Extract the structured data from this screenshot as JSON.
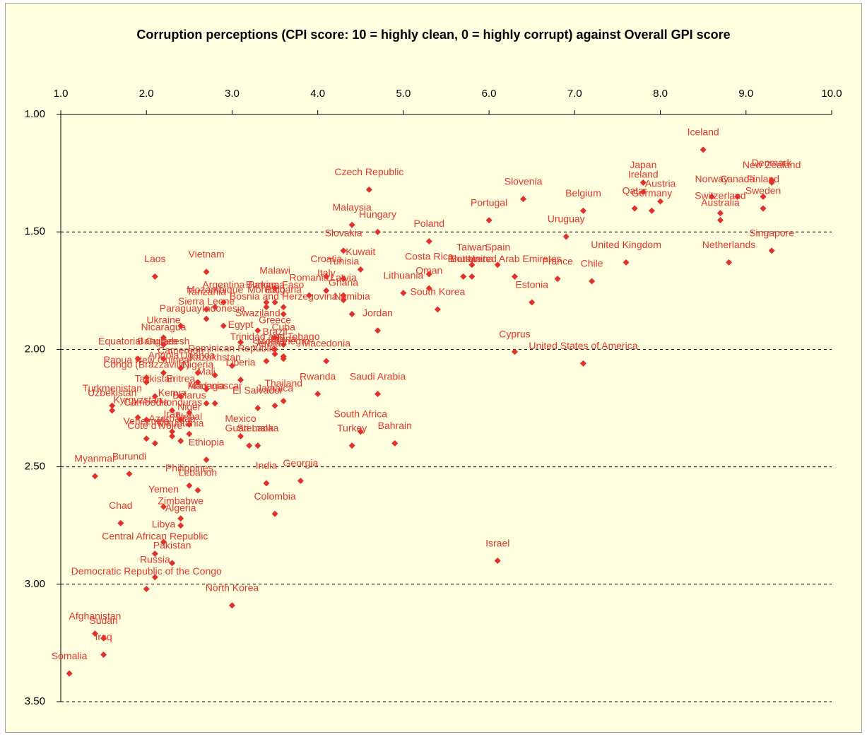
{
  "chart_data": {
    "type": "scatter",
    "title": "Corruption perceptions (CPI score: 10 = highly clean, 0 = highly corrupt) against Overall GPI score",
    "xlim": [
      1,
      10
    ],
    "xticks": [
      {
        "value": 1,
        "label": "1.0"
      },
      {
        "value": 2,
        "label": "2.0"
      },
      {
        "value": 3,
        "label": "3.0"
      },
      {
        "value": 4,
        "label": "4.0"
      },
      {
        "value": 5,
        "label": "5.0"
      },
      {
        "value": 6,
        "label": "6.0"
      },
      {
        "value": 7,
        "label": "7.0"
      },
      {
        "value": 8,
        "label": "8.0"
      },
      {
        "value": 9,
        "label": "9.0"
      },
      {
        "value": 10,
        "label": "10.0"
      }
    ],
    "ylim": [
      1,
      3.5
    ],
    "y_reversed": true,
    "yticks": [
      {
        "value": 1,
        "label": "1.00"
      },
      {
        "value": 1.5,
        "label": "1.50"
      },
      {
        "value": 2,
        "label": "2.00"
      },
      {
        "value": 2.5,
        "label": "2.50"
      },
      {
        "value": 3,
        "label": "3.00"
      },
      {
        "value": 3.5,
        "label": "3.50"
      }
    ],
    "grid": true,
    "labels": [
      "Iceland",
      "New Zealand",
      "Denmark",
      "Finland",
      "Sweden",
      "Canada",
      "Norway",
      "Switzerland",
      "Australia",
      "Singapore",
      "Netherlands",
      "Japan",
      "Austria",
      "Ireland",
      "Germany",
      "Qatar",
      "Belgium",
      "Slovenia",
      "Uruguay",
      "United Kingdom",
      "Chile",
      "France",
      "Estonia",
      "United Arab Emirates",
      "Spain",
      "Taiwan",
      "Botswana",
      "Bhutan",
      "Portugal",
      "Costa Rica",
      "Oman",
      "Lithuania",
      "South Korea",
      "Poland",
      "Czech Republic",
      "Malaysia",
      "Hungary",
      "Slovakia",
      "Kuwait",
      "Croatia",
      "Tunisia",
      "Italy",
      "Latvia",
      "Ghana",
      "Namibia",
      "Jordan",
      "Romania",
      "Malawi",
      "Burkina Faso",
      "Panama",
      "Bulgaria",
      "Bosnia and Herzegovina",
      "Morocco",
      "Mozambique",
      "Argentina",
      "Tanzania",
      "Sierra Leone",
      "Paraguay",
      "Indonesia",
      "Ukraine",
      "Swaziland",
      "Egypt",
      "Greece",
      "Cuba",
      "Nicaragua",
      "Equatorial Guinea",
      "Bangladesh",
      "China",
      "Trinidad and Tobago",
      "Macedonia",
      "Montenegro",
      "Serbia",
      "Dominican Republic",
      "Brazil",
      "Angola",
      "Cameroon",
      "Papua New Guinea",
      "Uganda",
      "Kazakhstan",
      "Liberia",
      "Congo (Brazzaville)",
      "Nigeria",
      "Mali",
      "Rwanda",
      "Saudi Arabia",
      "Tajikistan",
      "Eritrea",
      "Madagascar",
      "Turkmenistan",
      "Uzbekistan",
      "Kyrgyzstan",
      "Kenya",
      "Belarus",
      "Armenia",
      "Cambodia",
      "Honduras",
      "Niger",
      "Iran",
      "Azerbaijan",
      "Venezuela",
      "Mauritania",
      "Cote d'Ivoire",
      "Nepal",
      "Ethiopia",
      "Mexico",
      "Guatemala",
      "Sri Lanka",
      "El Salvador",
      "Jamaica",
      "Thailand",
      "South Africa",
      "Turkey",
      "Bahrain",
      "Cyprus",
      "United States of America",
      "Israel",
      "Georgia",
      "India",
      "Colombia",
      "North Korea",
      "Myanmar",
      "Burundi",
      "Philippines",
      "Lebanon",
      "Yemen",
      "Zimbabwe",
      "Algeria",
      "Libya",
      "Central African Republic",
      "Chad",
      "Pakistan",
      "Russia",
      "Democratic Republic of the Congo",
      "Afghanistan",
      "Sudan",
      "Iraq",
      "Somalia",
      "Laos",
      "Vietnam"
    ],
    "x": [
      8.5,
      9.3,
      9.3,
      9.2,
      9.2,
      8.9,
      8.6,
      8.7,
      8.7,
      9.3,
      8.8,
      7.8,
      8.0,
      7.8,
      7.9,
      7.7,
      7.1,
      6.4,
      6.9,
      7.6,
      7.2,
      6.8,
      6.5,
      6.3,
      6.1,
      5.8,
      5.8,
      5.7,
      6.0,
      5.3,
      5.3,
      5.0,
      5.4,
      5.3,
      4.6,
      4.4,
      4.7,
      4.3,
      4.5,
      4.1,
      4.3,
      4.1,
      4.3,
      4.3,
      4.4,
      4.7,
      3.9,
      3.5,
      3.5,
      3.4,
      3.6,
      3.6,
      3.4,
      2.8,
      2.9,
      2.7,
      2.7,
      2.4,
      2.9,
      2.2,
      3.3,
      3.1,
      3.5,
      3.6,
      2.2,
      1.9,
      2.2,
      3.6,
      3.5,
      4.1,
      3.6,
      3.4,
      3.0,
      3.5,
      2.2,
      2.4,
      2.0,
      2.6,
      2.8,
      3.1,
      2.0,
      2.6,
      2.7,
      4.0,
      4.7,
      2.1,
      2.4,
      2.8,
      1.6,
      1.6,
      1.9,
      2.3,
      2.5,
      2.7,
      2.0,
      2.4,
      2.5,
      2.3,
      2.3,
      2.0,
      2.4,
      2.1,
      2.5,
      2.7,
      3.1,
      3.2,
      3.3,
      3.3,
      3.5,
      3.6,
      4.5,
      4.4,
      4.9,
      6.3,
      7.1,
      6.1,
      3.8,
      3.4,
      3.5,
      3.0,
      1.4,
      1.8,
      2.5,
      2.6,
      2.2,
      2.4,
      2.4,
      2.2,
      2.1,
      1.7,
      2.3,
      2.1,
      2.0,
      1.4,
      1.5,
      1.5,
      1.1,
      2.1,
      2.7
    ],
    "series": [
      {
        "color": "#e3302a",
        "values": [
          1.15,
          1.29,
          1.28,
          1.35,
          1.4,
          1.35,
          1.35,
          1.42,
          1.45,
          1.58,
          1.63,
          1.29,
          1.37,
          1.33,
          1.41,
          1.4,
          1.41,
          1.36,
          1.52,
          1.63,
          1.71,
          1.7,
          1.8,
          1.69,
          1.64,
          1.64,
          1.69,
          1.69,
          1.45,
          1.68,
          1.74,
          1.76,
          1.83,
          1.54,
          1.32,
          1.47,
          1.5,
          1.58,
          1.66,
          1.69,
          1.7,
          1.75,
          1.77,
          1.79,
          1.85,
          1.92,
          1.77,
          1.74,
          1.8,
          1.8,
          1.82,
          1.85,
          1.82,
          1.82,
          1.8,
          1.83,
          1.87,
          1.9,
          1.9,
          1.95,
          1.92,
          1.97,
          1.95,
          1.98,
          1.98,
          2.04,
          2.04,
          2.03,
          2.02,
          2.05,
          2.04,
          2.05,
          2.07,
          2.0,
          2.1,
          2.08,
          2.12,
          2.1,
          2.11,
          2.13,
          2.14,
          2.14,
          2.17,
          2.19,
          2.19,
          2.2,
          2.2,
          2.23,
          2.24,
          2.26,
          2.29,
          2.26,
          2.27,
          2.23,
          2.3,
          2.3,
          2.32,
          2.35,
          2.37,
          2.38,
          2.39,
          2.4,
          2.36,
          2.47,
          2.37,
          2.41,
          2.41,
          2.25,
          2.24,
          2.22,
          2.35,
          2.41,
          2.4,
          2.01,
          2.06,
          2.9,
          2.56,
          2.57,
          2.7,
          3.09,
          2.54,
          2.53,
          2.58,
          2.6,
          2.67,
          2.72,
          2.75,
          2.82,
          2.87,
          2.74,
          2.91,
          2.97,
          3.02,
          3.21,
          3.23,
          3.3,
          3.38,
          1.69,
          1.67
        ]
      }
    ]
  }
}
